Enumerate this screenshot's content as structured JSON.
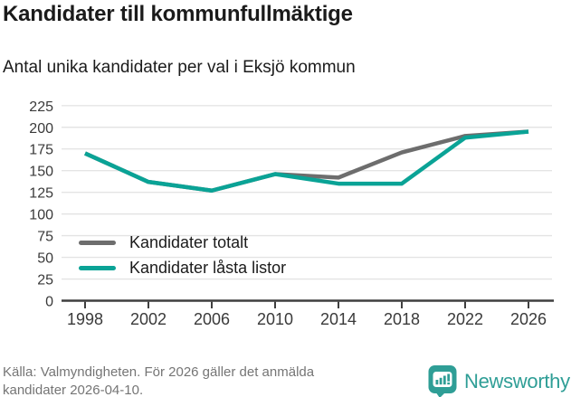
{
  "title": "Kandidater till kommunfullmäktige",
  "subtitle": "Antal unika kandidater per val i Eksjö kommun",
  "source": {
    "line1": "Källa: Valmyndigheten. För 2026 gäller det anmälda",
    "line2": "kandidater 2026-04-10."
  },
  "logo": {
    "text": "Newsworthy",
    "icon": "bar-chart-speech-bubble-icon",
    "color": "#2f9e96"
  },
  "chart_data": {
    "type": "line",
    "categories": [
      "1998",
      "2002",
      "2006",
      "2010",
      "2014",
      "2018",
      "2022",
      "2026"
    ],
    "series": [
      {
        "name": "Kandidater totalt",
        "color": "#6d6d6d",
        "values": [
          170,
          137,
          127,
          146,
          142,
          171,
          190,
          195
        ]
      },
      {
        "name": "Kandidater låsta listor",
        "color": "#0aa396",
        "values": [
          170,
          137,
          127,
          146,
          135,
          135,
          188,
          195
        ]
      }
    ],
    "ylim": [
      0,
      225
    ],
    "yticks": [
      0,
      25,
      50,
      75,
      100,
      125,
      150,
      175,
      200,
      225
    ],
    "grid": true,
    "legend_position": "inside-lower-left",
    "colors": {
      "grid": "#e4e4e4",
      "axis": "#3f3f3f",
      "tick_label": "#3a3a3a"
    }
  }
}
